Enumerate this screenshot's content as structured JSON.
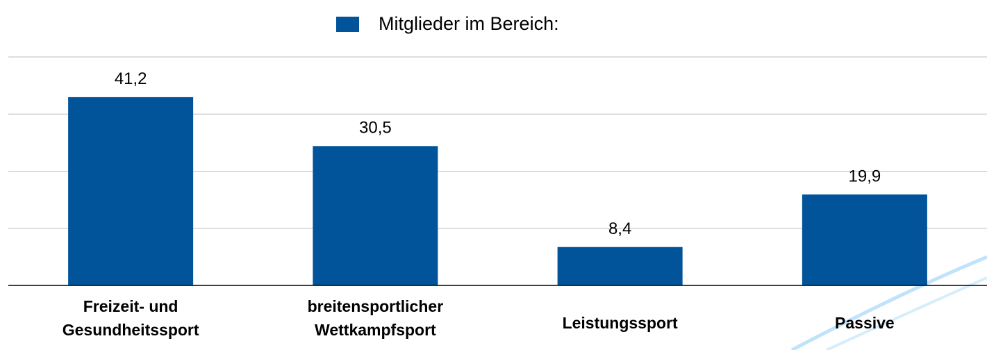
{
  "chart_data": {
    "type": "bar",
    "categories": [
      [
        "Freizeit- und",
        "Gesundheitssport"
      ],
      [
        "breitensportlicher",
        "Wettkampfsport"
      ],
      [
        "Leistungssport"
      ],
      [
        "Passive"
      ]
    ],
    "series": [
      {
        "name": "Mitglieder im Bereich:",
        "color": "#01549a",
        "values": [
          41.2,
          30.5,
          8.4,
          19.9
        ],
        "value_labels": [
          "41,2",
          "30,5",
          "8,4",
          "19,9"
        ]
      }
    ],
    "ylim": [
      0,
      50
    ],
    "yticks": [
      0,
      12.5,
      25,
      37.5,
      50
    ],
    "grid": true,
    "legend": "top"
  }
}
